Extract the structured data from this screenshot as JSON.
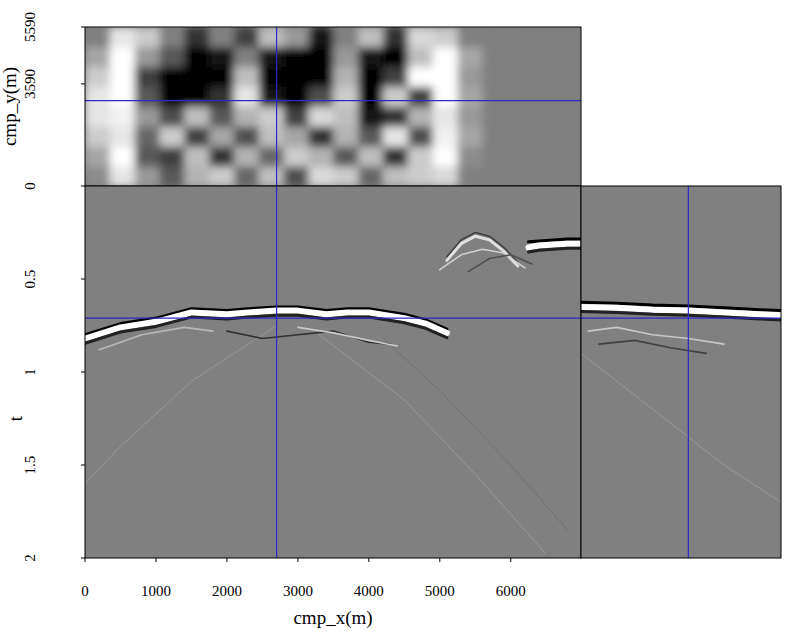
{
  "chart_data": [
    {
      "type": "heatmap",
      "ylabel": "cmp_y(m)",
      "xlim": [
        0,
        6990
      ],
      "ylim": [
        0,
        5590
      ],
      "yticks": [
        0,
        3590,
        5590
      ],
      "tick_labels": "y",
      "clim": [
        -1,
        1
      ],
      "cells": {
        "x_edges": [
          0,
          350,
          700,
          1050,
          1400,
          1750,
          2100,
          2450,
          2800,
          3150,
          3500,
          3850,
          4200,
          4550,
          4900,
          5250,
          5600,
          5950,
          6300,
          6650,
          7000
        ],
        "y_edges": [
          0,
          700,
          1400,
          2100,
          2800,
          3500,
          4200,
          4900,
          5590
        ],
        "values": [
          [
            0.1,
            0.8,
            0.2,
            -0.3,
            0.4,
            0.6,
            -0.2,
            0.5,
            -0.4,
            0.7,
            0.6,
            -0.2,
            0.5,
            0.6,
            0.7,
            0,
            0,
            0,
            0,
            0
          ],
          [
            0.3,
            1,
            -0.3,
            -0.5,
            0.5,
            -0.6,
            0.4,
            -0.2,
            0.6,
            0.4,
            -0.3,
            0.5,
            -0.6,
            0.6,
            1,
            0.1,
            0,
            0,
            0,
            0
          ],
          [
            0.6,
            0.8,
            -0.2,
            0.6,
            -0.5,
            0.3,
            -0.4,
            0.5,
            0.3,
            -0.6,
            0.4,
            -0.3,
            0.8,
            -0.4,
            0.9,
            0.3,
            0,
            0,
            0,
            0
          ],
          [
            0.8,
            0.9,
            0.2,
            -0.4,
            0.5,
            -0.3,
            0.4,
            0.6,
            -0.5,
            0.7,
            0.5,
            -0.8,
            -0.6,
            0.4,
            0.8,
            0.2,
            0,
            0,
            0,
            0
          ],
          [
            0.8,
            1,
            -0.3,
            -1,
            -1,
            -0.6,
            0.8,
            -0.8,
            -1,
            -0.4,
            0.6,
            -1,
            0.6,
            -0.5,
            1,
            0.3,
            0,
            0,
            0,
            0
          ],
          [
            0.6,
            1,
            -0.5,
            -1,
            -1,
            -1,
            0.5,
            -1,
            -1,
            -1,
            0.4,
            -1,
            -0.5,
            1,
            1,
            0.2,
            0,
            0,
            0,
            0
          ],
          [
            0.3,
            1,
            0.2,
            -0.3,
            -1,
            -0.8,
            0,
            -0.8,
            -1,
            -1,
            0.2,
            -0.8,
            -1,
            0.5,
            1,
            0.3,
            0,
            0,
            0,
            0
          ],
          [
            0,
            0.8,
            0.6,
            0,
            -0.6,
            0,
            -0.5,
            0.5,
            0.2,
            -0.8,
            0,
            0.5,
            -0.6,
            0.7,
            0.6,
            0,
            0,
            0,
            0,
            0
          ]
        ]
      },
      "crosshair": {
        "x": 2700,
        "y": 3000
      }
    },
    {
      "type": "line",
      "xlabel": "cmp_x(m)",
      "ylabel": "t",
      "xlim": [
        0,
        6990
      ],
      "ylim": [
        0,
        2
      ],
      "xticks": [
        0,
        1000,
        2000,
        3000,
        4000,
        5000,
        6000
      ],
      "yticks": [
        0.5,
        1,
        1.5,
        2
      ],
      "crosshair": {
        "x": 2700,
        "y": 0.71
      },
      "series": [
        {
          "color": "#999999",
          "line_style": "faint",
          "x": [
            3300,
            4500,
            5500,
            6500
          ],
          "values": [
            0.8,
            1.15,
            1.55,
            1.98
          ]
        },
        {
          "color": "#999999",
          "line_style": "faint",
          "x": [
            0,
            500,
            1500,
            2700
          ],
          "values": [
            1.6,
            1.4,
            1.05,
            0.75
          ]
        },
        {
          "color": "#707070",
          "line_style": "faint",
          "x": [
            4200,
            5000,
            6000,
            6800
          ],
          "values": [
            0.82,
            1.1,
            1.5,
            1.85
          ]
        },
        {
          "color": "#b8b8b8",
          "line_style": "thin",
          "x": [
            200,
            800,
            1400,
            1800
          ],
          "values": [
            0.88,
            0.8,
            0.76,
            0.78
          ]
        },
        {
          "color": "#303030",
          "line_style": "thin",
          "x": [
            2000,
            2500,
            3000,
            3500,
            4000,
            4300
          ],
          "values": [
            0.78,
            0.82,
            0.8,
            0.78,
            0.84,
            0.85
          ]
        },
        {
          "color": "#c8c8c8",
          "line_style": "thin",
          "x": [
            3000,
            3500,
            4000,
            4400
          ],
          "values": [
            0.76,
            0.79,
            0.83,
            0.86
          ]
        },
        {
          "color": "#000000",
          "line_style": "medium",
          "x": [
            0,
            500,
            1000,
            1500,
            2000,
            2300,
            2700,
            3000,
            3400,
            3700,
            4000,
            4500,
            4800,
            5100
          ],
          "values": [
            0.8,
            0.74,
            0.71,
            0.66,
            0.67,
            0.66,
            0.65,
            0.65,
            0.67,
            0.66,
            0.66,
            0.69,
            0.72,
            0.77
          ]
        },
        {
          "color": "#ffffff",
          "line_style": "thick",
          "x": [
            0,
            500,
            1000,
            1500,
            2000,
            2300,
            2700,
            3000,
            3400,
            3700,
            4000,
            4500,
            4800,
            5100
          ],
          "values": [
            0.82,
            0.76,
            0.73,
            0.68,
            0.69,
            0.68,
            0.67,
            0.67,
            0.69,
            0.68,
            0.68,
            0.71,
            0.74,
            0.79
          ]
        },
        {
          "color": "#202020",
          "line_style": "medium",
          "x": [
            0,
            500,
            1000,
            1500,
            2000,
            2300,
            2700,
            3000,
            3400,
            3700,
            4000,
            4500,
            4800,
            5100
          ],
          "values": [
            0.845,
            0.785,
            0.755,
            0.705,
            0.715,
            0.705,
            0.695,
            0.695,
            0.715,
            0.705,
            0.705,
            0.735,
            0.765,
            0.815
          ]
        },
        {
          "color": "#404040",
          "line_style": "thin",
          "x": [
            5100,
            5300,
            5500,
            5700,
            5900,
            6100
          ],
          "values": [
            0.38,
            0.29,
            0.25,
            0.27,
            0.33,
            0.41
          ]
        },
        {
          "color": "#e0e0e0",
          "line_style": "medium",
          "x": [
            5100,
            5300,
            5500,
            5700,
            5900,
            6100
          ],
          "values": [
            0.4,
            0.31,
            0.27,
            0.29,
            0.35,
            0.43
          ]
        },
        {
          "color": "#d0d0d0",
          "line_style": "thin",
          "x": [
            5000,
            5300,
            5600,
            5900,
            6200
          ],
          "values": [
            0.45,
            0.37,
            0.34,
            0.36,
            0.44
          ]
        },
        {
          "color": "#505050",
          "line_style": "thin",
          "x": [
            5400,
            5700,
            6000,
            6300
          ],
          "values": [
            0.46,
            0.39,
            0.37,
            0.42
          ]
        },
        {
          "color": "#000000",
          "line_style": "medium",
          "x": [
            6250,
            6400,
            6600,
            6800,
            6990
          ],
          "values": [
            0.3,
            0.295,
            0.29,
            0.285,
            0.285
          ]
        },
        {
          "color": "#ffffff",
          "line_style": "thick",
          "x": [
            6250,
            6400,
            6600,
            6800,
            6990
          ],
          "values": [
            0.33,
            0.32,
            0.315,
            0.31,
            0.31
          ]
        },
        {
          "color": "#202020",
          "line_style": "medium",
          "x": [
            6250,
            6400,
            6600,
            6800,
            6990
          ],
          "values": [
            0.355,
            0.345,
            0.34,
            0.335,
            0.335
          ]
        }
      ]
    },
    {
      "type": "line",
      "xlim": [
        0,
        5590
      ],
      "ylim": [
        0,
        2
      ],
      "tick_labels": false,
      "crosshair": {
        "x": 3000,
        "y": 0.71
      },
      "series": [
        {
          "color": "#999999",
          "line_style": "faint",
          "x": [
            0,
            2000,
            4000,
            5590
          ],
          "values": [
            0.9,
            1.2,
            1.5,
            1.7
          ]
        },
        {
          "color": "#c8c8c8",
          "line_style": "thin",
          "x": [
            200,
            1000,
            2000,
            3000,
            4000
          ],
          "values": [
            0.78,
            0.76,
            0.8,
            0.82,
            0.85
          ]
        },
        {
          "color": "#404040",
          "line_style": "thin",
          "x": [
            500,
            1500,
            2500,
            3500
          ],
          "values": [
            0.85,
            0.83,
            0.87,
            0.9
          ]
        },
        {
          "color": "#000000",
          "line_style": "medium",
          "x": [
            0,
            1000,
            2000,
            3000,
            4000,
            5000,
            5590
          ],
          "values": [
            0.625,
            0.63,
            0.64,
            0.645,
            0.655,
            0.665,
            0.67
          ]
        },
        {
          "color": "#ffffff",
          "line_style": "thick",
          "x": [
            0,
            1000,
            2000,
            3000,
            4000,
            5000,
            5590
          ],
          "values": [
            0.65,
            0.655,
            0.665,
            0.67,
            0.68,
            0.69,
            0.695
          ]
        },
        {
          "color": "#202020",
          "line_style": "medium",
          "x": [
            0,
            1000,
            2000,
            3000,
            4000,
            5000,
            5590
          ],
          "values": [
            0.675,
            0.68,
            0.69,
            0.695,
            0.705,
            0.715,
            0.72
          ]
        }
      ]
    }
  ]
}
